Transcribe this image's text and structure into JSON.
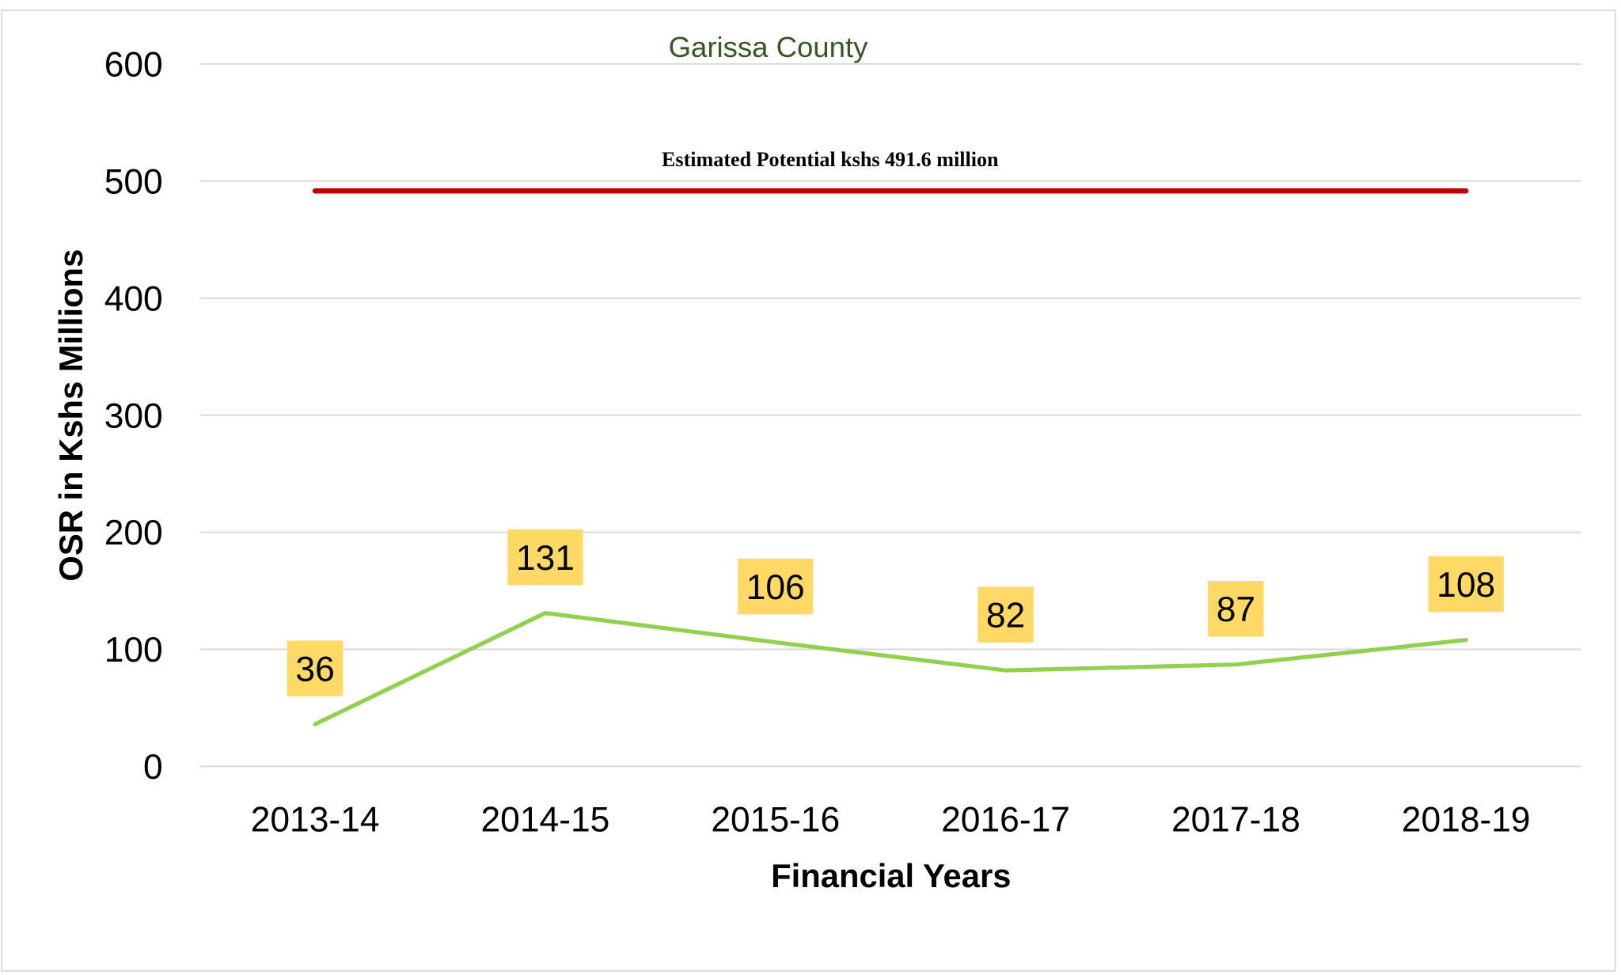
{
  "chart_data": {
    "type": "line",
    "title": "Garissa County",
    "xlabel": "Financial Years",
    "ylabel": "OSR in Kshs Millions",
    "categories": [
      "2013-14",
      "2014-15",
      "2015-16",
      "2016-17",
      "2017-18",
      "2018-19"
    ],
    "series": [
      {
        "name": "OSR",
        "values": [
          36,
          131,
          106,
          82,
          87,
          108
        ],
        "color": "#92D050"
      },
      {
        "name": "Estimated Potential",
        "values": [
          491.6,
          491.6,
          491.6,
          491.6,
          491.6,
          491.6
        ],
        "color": "#C00000"
      }
    ],
    "data_labels": [
      "36",
      "131",
      "106",
      "82",
      "87",
      "108"
    ],
    "data_label_bg": "#FFD966",
    "annotation": "Estimated Potential kshs 491.6 million",
    "ylim": [
      0,
      600
    ],
    "yticks": [
      "0",
      "100",
      "200",
      "300",
      "400",
      "500",
      "600"
    ],
    "grid": true,
    "legend": "none"
  }
}
